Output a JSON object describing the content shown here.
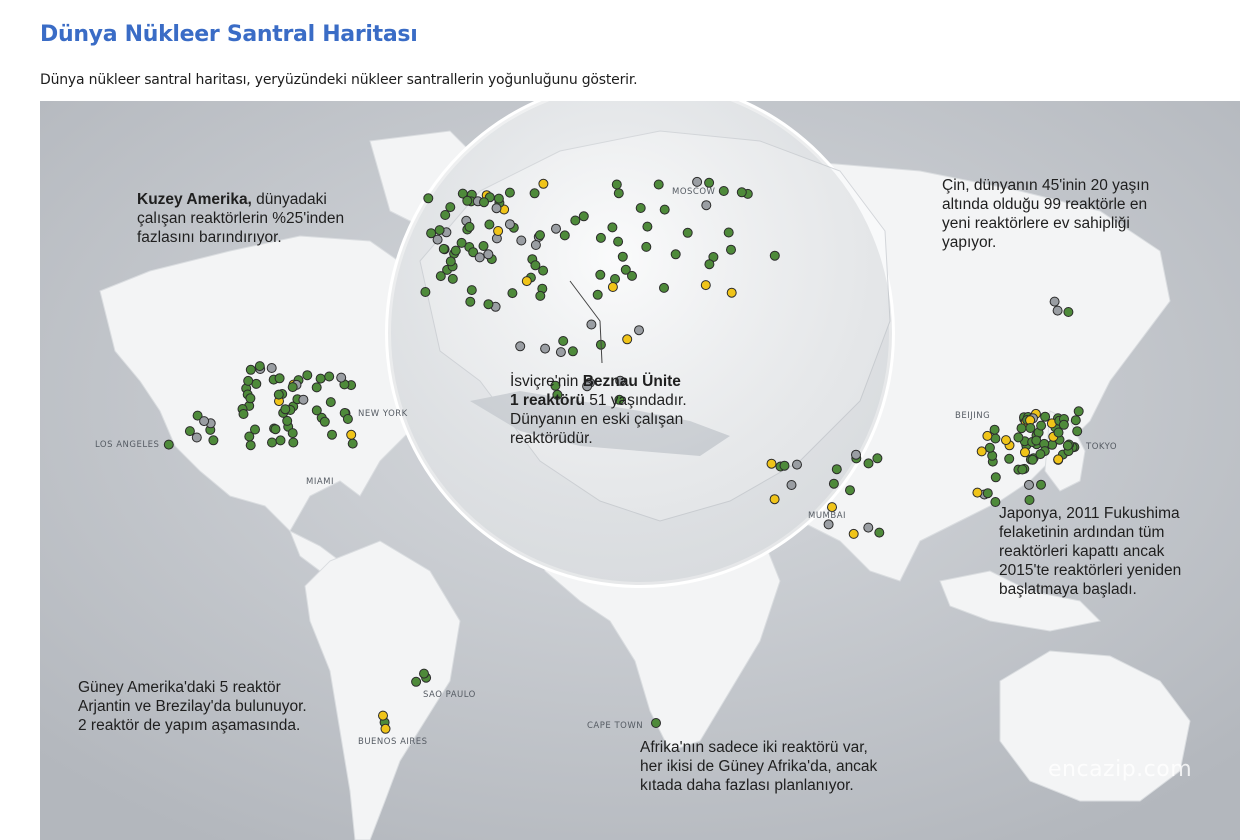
{
  "page": {
    "title": "Dünya Nükleer Santral Haritası",
    "description": "Dünya nükleer santral haritası, yeryüzündeki nükleer santrallerin yoğunluğunu gösterir."
  },
  "map": {
    "notes": {
      "north_america": {
        "bold": "Kuzey Amerika,",
        "rest_1": " dünyadaki",
        "rest_2": "çalışan reaktörlerin %25'inden",
        "rest_3": "fazlasını barındırıyor."
      },
      "china": {
        "line_1": "Çin, dünyanın 45'inin 20 yaşın",
        "line_2": "altında olduğu 99 reaktörle en",
        "line_3": "yeni reaktörlere ev sahipliği",
        "line_4": "yapıyor."
      },
      "switzerland": {
        "pre": "İsviçre'nin ",
        "bold_1": "Beznau Ünite",
        "bold_2": "1 reaktörü",
        "rest_1": " 51 yaşındadır.",
        "rest_2": "Dünyanın en eski çalışan",
        "rest_3": "reaktörüdür."
      },
      "japan": {
        "line_1": "Japonya, 2011 Fukushima",
        "line_2": "felaketinin ardından tüm",
        "line_3": "reaktörleri kapattı ancak",
        "line_4": "2015'te reaktörleri yeniden",
        "line_5": "başlatmaya başladı."
      },
      "south_america": {
        "line_1": "Güney Amerika'daki 5 reaktör",
        "line_2": "Arjantin ve Brezilay'da bulunuyor.",
        "line_3": "2 reaktör de yapım aşamasında."
      },
      "africa": {
        "line_1": "Afrika'nın sadece iki reaktörü var,",
        "line_2": "her ikisi de Güney Afrika'da, ancak",
        "line_3": "kıtada daha fazlası planlanıyor."
      }
    },
    "cities": {
      "moscow": "MOSCOW",
      "new_york": "NEW YORK",
      "los_angeles": "LOS ANGELES",
      "miami": "MIAMI",
      "beijing": "BEIJING",
      "tokyo": "TOKYO",
      "mumbai": "MUMBAI",
      "sao_paulo": "SAO PAULO",
      "buenos_aires": "BUENOS AIRES",
      "cape_town": "CAPE TOWN"
    },
    "watermark": "encazip.com",
    "colors": {
      "operating": "#4e8a3a",
      "closed": "#9a9ea3",
      "under_construction": "#f0c419",
      "land": "#f4f5f6",
      "water": "#c9ccd1",
      "title": "#3a6cc6"
    }
  }
}
